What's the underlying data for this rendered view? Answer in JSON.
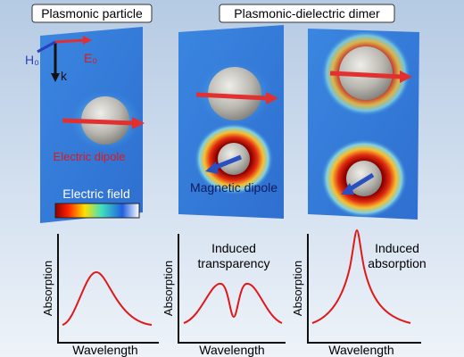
{
  "header": {
    "left_title": "Plasmonic particle",
    "right_title": "Plasmonic-dielectric dimer"
  },
  "panels": [
    {
      "h_label": "H₀",
      "e_label": "E₀",
      "k_label": "k",
      "dipole": "Electric dipole",
      "colorbar": "Electric field"
    },
    {
      "dipole": "Magnetic dipole"
    }
  ],
  "plots": [
    {
      "y_label": "Absorption",
      "x_label": "Wavelength"
    },
    {
      "y_label": "Absorption",
      "x_label": "Wavelength",
      "annotation": [
        "Induced",
        "transparency"
      ]
    },
    {
      "y_label": "Absorption",
      "x_label": "Wavelength",
      "annotation": [
        "Induced",
        "absorption"
      ]
    }
  ]
}
